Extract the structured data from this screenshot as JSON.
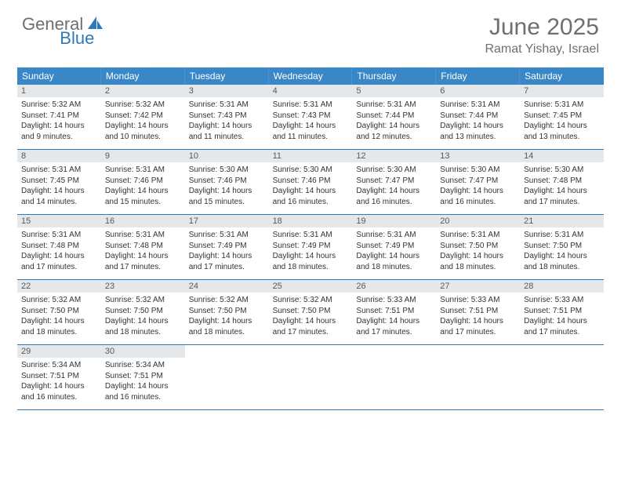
{
  "logo": {
    "general": "General",
    "blue": "Blue"
  },
  "title": "June 2025",
  "location": "Ramat Yishay, Israel",
  "colors": {
    "header_bg": "#3a87c8",
    "daynum_bg": "#e5e8ea",
    "rule": "#2f79b9",
    "text_muted": "#6b7074",
    "brand_blue": "#2f79b9"
  },
  "weekdays": [
    "Sunday",
    "Monday",
    "Tuesday",
    "Wednesday",
    "Thursday",
    "Friday",
    "Saturday"
  ],
  "weeks": [
    [
      {
        "n": "1",
        "sr": "5:32 AM",
        "ss": "7:41 PM",
        "dl": "14 hours and 9 minutes."
      },
      {
        "n": "2",
        "sr": "5:32 AM",
        "ss": "7:42 PM",
        "dl": "14 hours and 10 minutes."
      },
      {
        "n": "3",
        "sr": "5:31 AM",
        "ss": "7:43 PM",
        "dl": "14 hours and 11 minutes."
      },
      {
        "n": "4",
        "sr": "5:31 AM",
        "ss": "7:43 PM",
        "dl": "14 hours and 11 minutes."
      },
      {
        "n": "5",
        "sr": "5:31 AM",
        "ss": "7:44 PM",
        "dl": "14 hours and 12 minutes."
      },
      {
        "n": "6",
        "sr": "5:31 AM",
        "ss": "7:44 PM",
        "dl": "14 hours and 13 minutes."
      },
      {
        "n": "7",
        "sr": "5:31 AM",
        "ss": "7:45 PM",
        "dl": "14 hours and 13 minutes."
      }
    ],
    [
      {
        "n": "8",
        "sr": "5:31 AM",
        "ss": "7:45 PM",
        "dl": "14 hours and 14 minutes."
      },
      {
        "n": "9",
        "sr": "5:31 AM",
        "ss": "7:46 PM",
        "dl": "14 hours and 15 minutes."
      },
      {
        "n": "10",
        "sr": "5:30 AM",
        "ss": "7:46 PM",
        "dl": "14 hours and 15 minutes."
      },
      {
        "n": "11",
        "sr": "5:30 AM",
        "ss": "7:46 PM",
        "dl": "14 hours and 16 minutes."
      },
      {
        "n": "12",
        "sr": "5:30 AM",
        "ss": "7:47 PM",
        "dl": "14 hours and 16 minutes."
      },
      {
        "n": "13",
        "sr": "5:30 AM",
        "ss": "7:47 PM",
        "dl": "14 hours and 16 minutes."
      },
      {
        "n": "14",
        "sr": "5:30 AM",
        "ss": "7:48 PM",
        "dl": "14 hours and 17 minutes."
      }
    ],
    [
      {
        "n": "15",
        "sr": "5:31 AM",
        "ss": "7:48 PM",
        "dl": "14 hours and 17 minutes."
      },
      {
        "n": "16",
        "sr": "5:31 AM",
        "ss": "7:48 PM",
        "dl": "14 hours and 17 minutes."
      },
      {
        "n": "17",
        "sr": "5:31 AM",
        "ss": "7:49 PM",
        "dl": "14 hours and 17 minutes."
      },
      {
        "n": "18",
        "sr": "5:31 AM",
        "ss": "7:49 PM",
        "dl": "14 hours and 18 minutes."
      },
      {
        "n": "19",
        "sr": "5:31 AM",
        "ss": "7:49 PM",
        "dl": "14 hours and 18 minutes."
      },
      {
        "n": "20",
        "sr": "5:31 AM",
        "ss": "7:50 PM",
        "dl": "14 hours and 18 minutes."
      },
      {
        "n": "21",
        "sr": "5:31 AM",
        "ss": "7:50 PM",
        "dl": "14 hours and 18 minutes."
      }
    ],
    [
      {
        "n": "22",
        "sr": "5:32 AM",
        "ss": "7:50 PM",
        "dl": "14 hours and 18 minutes."
      },
      {
        "n": "23",
        "sr": "5:32 AM",
        "ss": "7:50 PM",
        "dl": "14 hours and 18 minutes."
      },
      {
        "n": "24",
        "sr": "5:32 AM",
        "ss": "7:50 PM",
        "dl": "14 hours and 18 minutes."
      },
      {
        "n": "25",
        "sr": "5:32 AM",
        "ss": "7:50 PM",
        "dl": "14 hours and 17 minutes."
      },
      {
        "n": "26",
        "sr": "5:33 AM",
        "ss": "7:51 PM",
        "dl": "14 hours and 17 minutes."
      },
      {
        "n": "27",
        "sr": "5:33 AM",
        "ss": "7:51 PM",
        "dl": "14 hours and 17 minutes."
      },
      {
        "n": "28",
        "sr": "5:33 AM",
        "ss": "7:51 PM",
        "dl": "14 hours and 17 minutes."
      }
    ],
    [
      {
        "n": "29",
        "sr": "5:34 AM",
        "ss": "7:51 PM",
        "dl": "14 hours and 16 minutes."
      },
      {
        "n": "30",
        "sr": "5:34 AM",
        "ss": "7:51 PM",
        "dl": "14 hours and 16 minutes."
      },
      null,
      null,
      null,
      null,
      null
    ]
  ],
  "labels": {
    "sunrise": "Sunrise:",
    "sunset": "Sunset:",
    "daylight": "Daylight:"
  }
}
